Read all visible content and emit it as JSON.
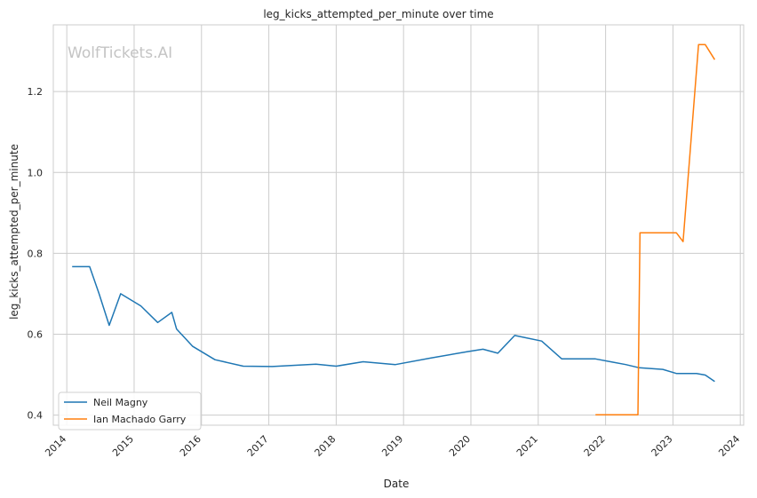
{
  "watermark": "WolfTickets.AI",
  "chart_data": {
    "type": "line",
    "title": "leg_kicks_attempted_per_minute over time",
    "xlabel": "Date",
    "ylabel": "leg_kicks_attempted_per_minute",
    "xlim": [
      2013.8,
      2024.05
    ],
    "ylim": [
      0.375,
      1.365
    ],
    "x_ticks": [
      "2014",
      "2015",
      "2016",
      "2017",
      "2018",
      "2019",
      "2020",
      "2021",
      "2022",
      "2023",
      "2024"
    ],
    "y_ticks": [
      "0.4",
      "0.6",
      "0.8",
      "1.0",
      "1.2"
    ],
    "grid": true,
    "legend_position": "lower-left",
    "series": [
      {
        "name": "Neil Magny",
        "color": "#1f77b4",
        "points": [
          [
            2014.08,
            0.767
          ],
          [
            2014.34,
            0.767
          ],
          [
            2014.48,
            0.7
          ],
          [
            2014.63,
            0.622
          ],
          [
            2014.8,
            0.7
          ],
          [
            2015.1,
            0.67
          ],
          [
            2015.35,
            0.629
          ],
          [
            2015.56,
            0.654
          ],
          [
            2015.63,
            0.613
          ],
          [
            2015.87,
            0.57
          ],
          [
            2016.2,
            0.537
          ],
          [
            2016.62,
            0.521
          ],
          [
            2017.05,
            0.52
          ],
          [
            2017.7,
            0.526
          ],
          [
            2018.0,
            0.521
          ],
          [
            2018.4,
            0.532
          ],
          [
            2018.88,
            0.525
          ],
          [
            2019.4,
            0.541
          ],
          [
            2019.95,
            0.557
          ],
          [
            2020.18,
            0.563
          ],
          [
            2020.4,
            0.553
          ],
          [
            2020.65,
            0.597
          ],
          [
            2021.05,
            0.583
          ],
          [
            2021.35,
            0.539
          ],
          [
            2021.85,
            0.539
          ],
          [
            2022.1,
            0.531
          ],
          [
            2022.3,
            0.525
          ],
          [
            2022.5,
            0.517
          ],
          [
            2022.85,
            0.513
          ],
          [
            2023.05,
            0.503
          ],
          [
            2023.35,
            0.503
          ],
          [
            2023.48,
            0.499
          ],
          [
            2023.62,
            0.483
          ]
        ]
      },
      {
        "name": "Ian Machado Garry",
        "color": "#ff7f0e",
        "points": [
          [
            2021.85,
            0.401
          ],
          [
            2022.2,
            0.401
          ],
          [
            2022.48,
            0.401
          ],
          [
            2022.51,
            0.851
          ],
          [
            2023.05,
            0.851
          ],
          [
            2023.15,
            0.829
          ],
          [
            2023.38,
            1.316
          ],
          [
            2023.48,
            1.316
          ],
          [
            2023.62,
            1.279
          ]
        ]
      }
    ]
  }
}
